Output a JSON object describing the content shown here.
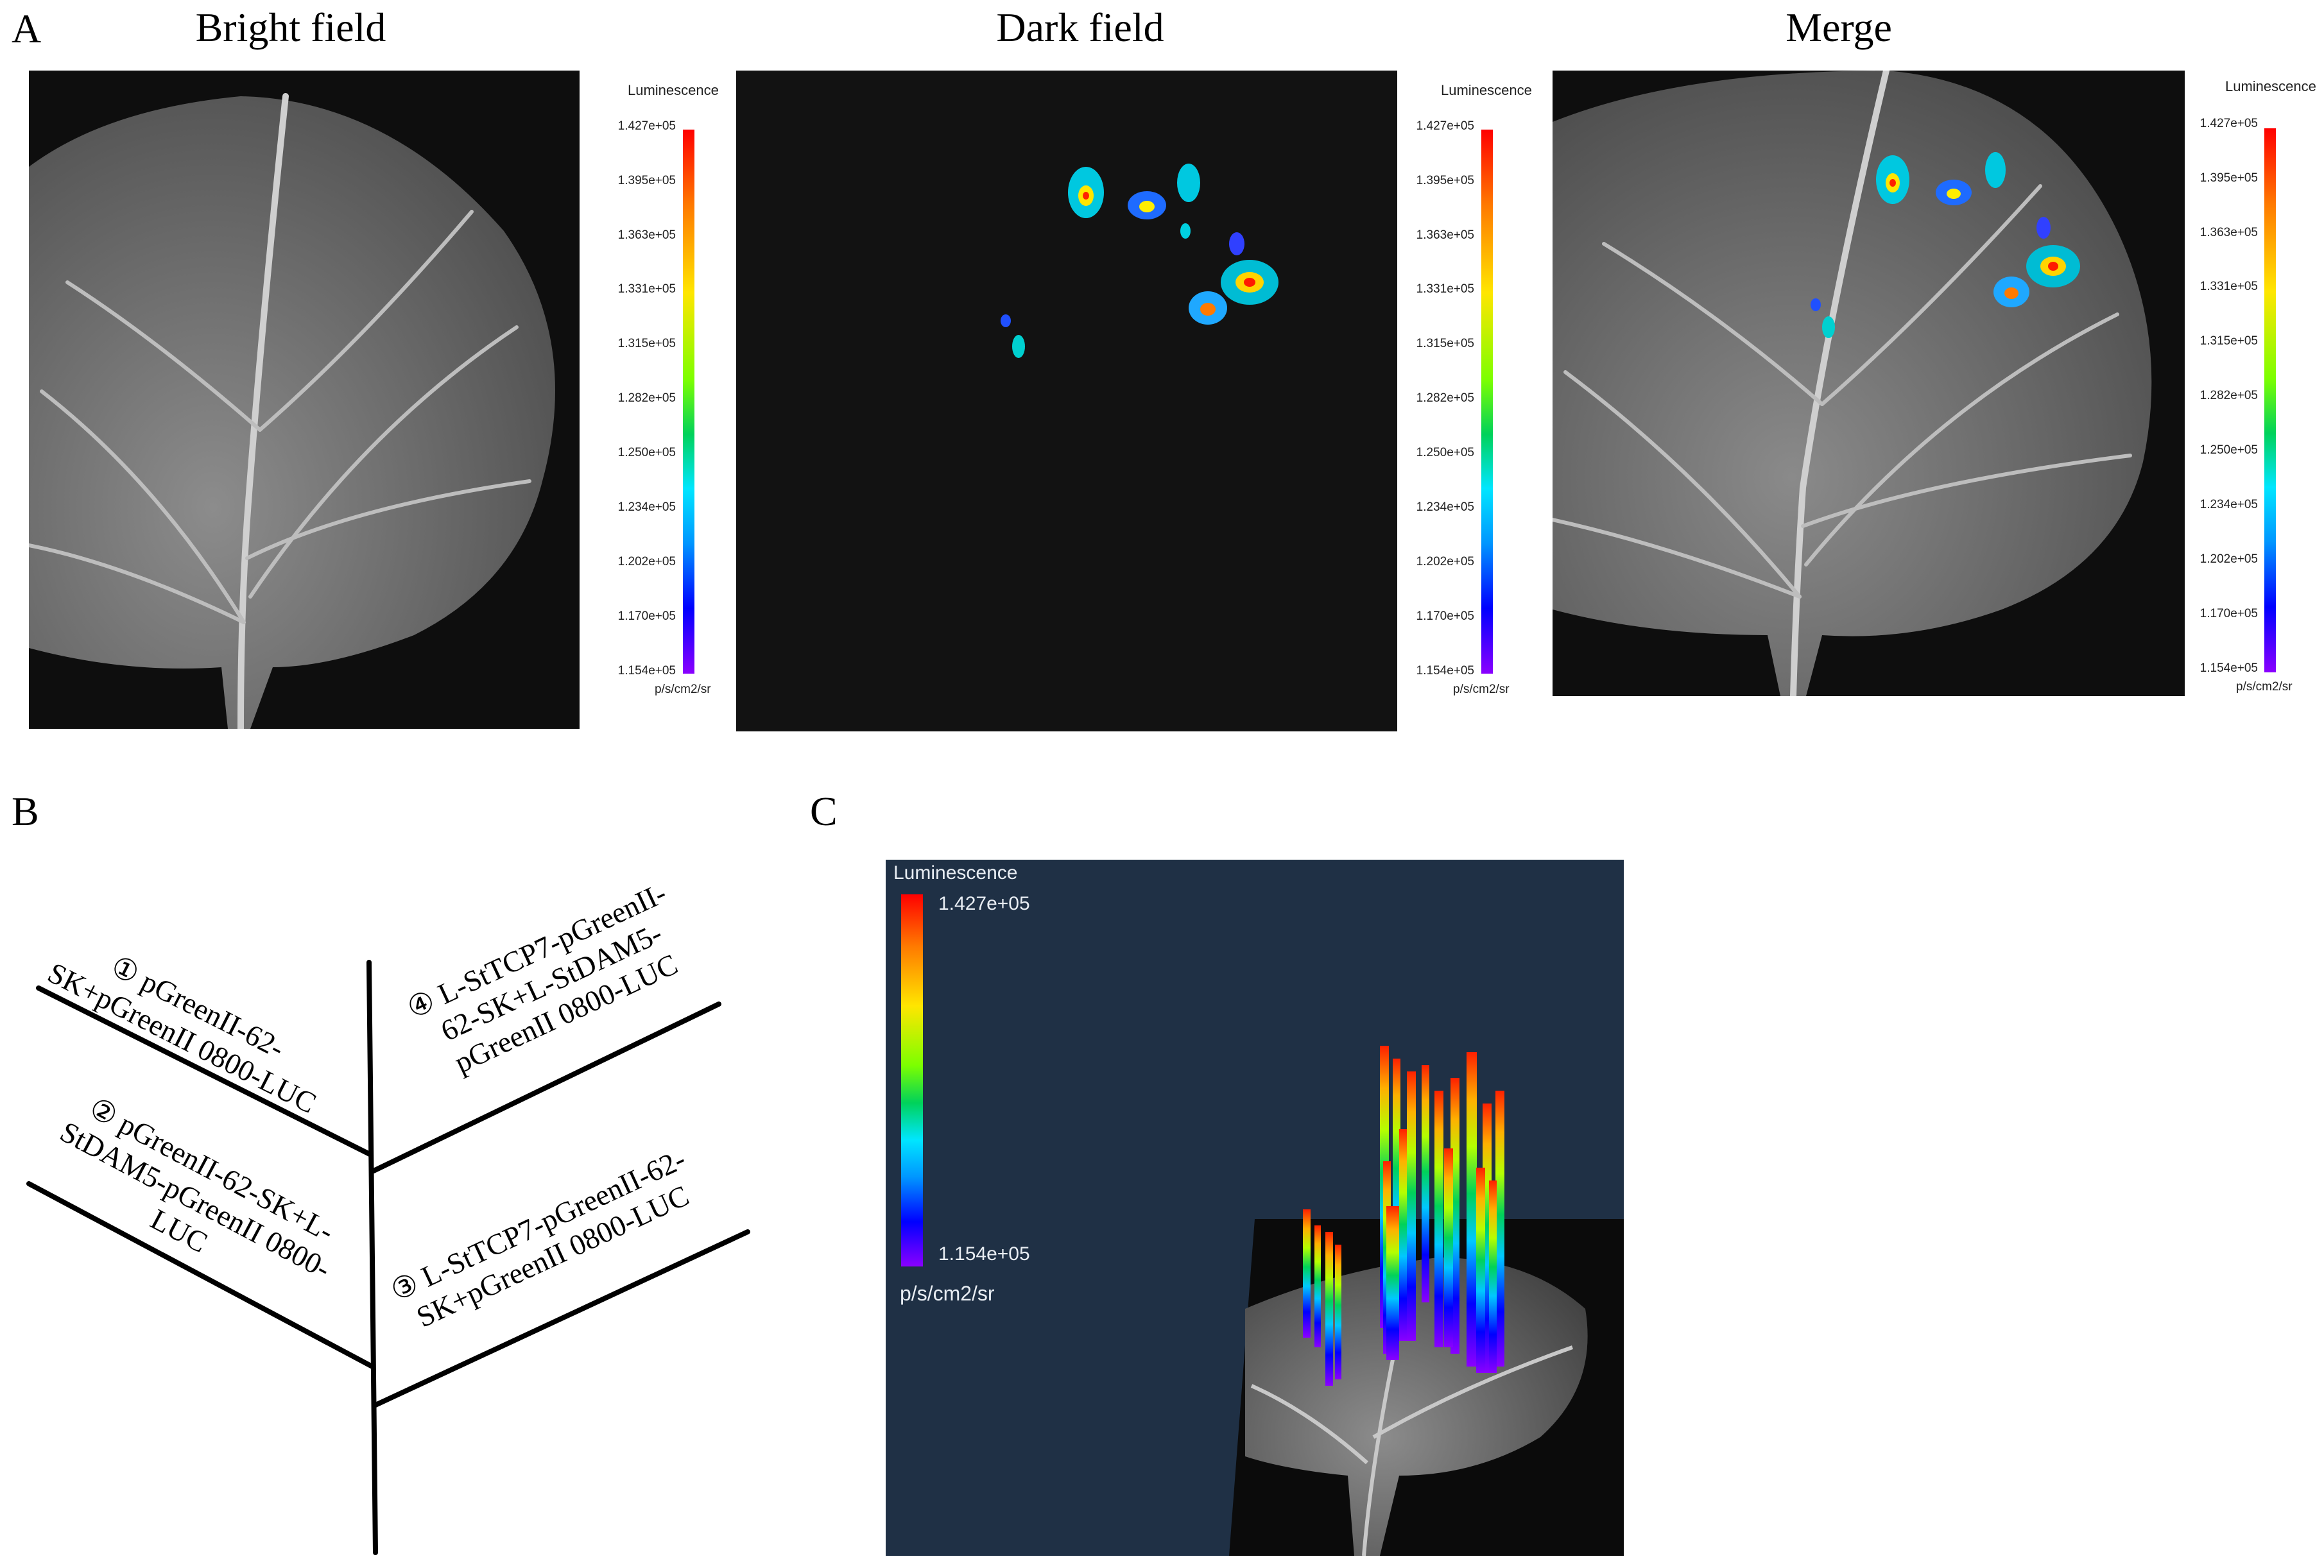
{
  "panel_a": {
    "letter": "A",
    "titles": [
      "Bright field",
      "Dark field",
      "Merge"
    ],
    "scale": {
      "title": "Luminescence",
      "ticks": [
        "1.427e+05",
        "1.395e+05",
        "1.363e+05",
        "1.331e+05",
        "1.315e+05",
        "1.282e+05",
        "1.250e+05",
        "1.234e+05",
        "1.202e+05",
        "1.170e+05",
        "1.154e+05"
      ],
      "unit": "p/s/cm2/sr"
    }
  },
  "panel_b": {
    "letter": "B",
    "labels": [
      [
        "① pGreenII-62-",
        "SK+pGreenII 0800-LUC"
      ],
      [
        "② pGreenII-62-SK+L-",
        "StDAM5-pGreenII 0800-",
        "LUC"
      ],
      [
        "③ L-StTCP7-pGreenII-62-",
        "SK+pGreenII 0800-LUC"
      ],
      [
        "④ L-StTCP7-pGreenII-",
        "62-SK+L-StDAM5-",
        "pGreenII 0800-LUC"
      ]
    ]
  },
  "panel_c": {
    "letter": "C",
    "scale": {
      "title": "Luminescence",
      "max": "1.427e+05",
      "min": "1.154e+05",
      "unit": "p/s/cm2/sr"
    },
    "colors": {
      "background": "#1f3045"
    }
  }
}
